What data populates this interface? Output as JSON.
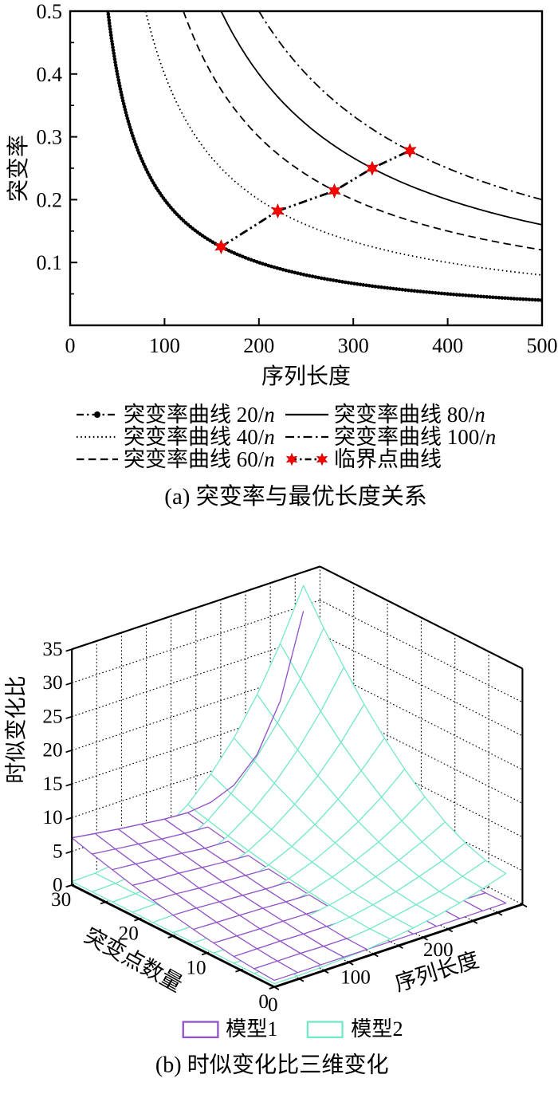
{
  "colors": {
    "black": "#000000",
    "star_fill": "#ff0000",
    "star_edge": "#c40000",
    "model1": "#9254c8",
    "model2": "#74e8c8"
  },
  "chart_data": [
    {
      "type": "line",
      "title": "(a) 突变率与最优长度关系",
      "xlabel": "序列长度",
      "ylabel": "突变率",
      "xlim": [
        0,
        500
      ],
      "ylim": [
        0,
        0.5
      ],
      "x_ticks": [
        0,
        100,
        200,
        300,
        400,
        500
      ],
      "y_ticks": [
        "0.1",
        "0.2",
        "0.3",
        "0.4",
        "0.5"
      ],
      "y_minor_ticks": [
        0.05,
        0.15,
        0.25,
        0.35,
        0.45
      ],
      "grid": false,
      "legend_position": "below",
      "series": [
        {
          "name": "突变率曲线 20/n",
          "label_prefix": "突变率曲线 20/",
          "label_var": "n",
          "k": 20,
          "linestyle": "beaded-dashdot",
          "color": "#000000"
        },
        {
          "name": "突变率曲线 40/n",
          "label_prefix": "突变率曲线 40/",
          "label_var": "n",
          "k": 40,
          "linestyle": "dotted",
          "color": "#000000"
        },
        {
          "name": "突变率曲线 60/n",
          "label_prefix": "突变率曲线 60/",
          "label_var": "n",
          "k": 60,
          "linestyle": "dashed",
          "color": "#000000"
        },
        {
          "name": "突变率曲线 80/n",
          "label_prefix": "突变率曲线 80/",
          "label_var": "n",
          "k": 80,
          "linestyle": "solid",
          "color": "#000000"
        },
        {
          "name": "突变率曲线 100/n",
          "label_prefix": "突变率曲线 100/",
          "label_var": "n",
          "k": 100,
          "linestyle": "dashdot",
          "color": "#000000"
        }
      ],
      "critical_curve": {
        "name": "临界点曲线",
        "marker": "red-hexagram",
        "linestyle": "dashdotdot",
        "color": "#000000",
        "marker_color": "#ff0000",
        "points": [
          [
            160,
            0.125
          ],
          [
            220,
            0.182
          ],
          [
            280,
            0.214
          ],
          [
            320,
            0.25
          ],
          [
            360,
            0.278
          ]
        ]
      }
    },
    {
      "type": "surface",
      "title": "(b) 时似变化比三维变化",
      "xlabel": "序列长度",
      "ylabel": "突变点数量",
      "zlabel": "时似变化比",
      "xlim": [
        0,
        300
      ],
      "ylim": [
        0,
        30
      ],
      "zlim": [
        0,
        35
      ],
      "x_ticks": [
        0,
        100,
        200
      ],
      "y_ticks": [
        30,
        20,
        10,
        0
      ],
      "z_ticks": [
        0,
        5,
        10,
        15,
        20,
        25,
        30,
        35
      ],
      "x_grid_wall": [
        30,
        60,
        90,
        120,
        150,
        180,
        210,
        240,
        270
      ],
      "y_grid_wall": [
        5,
        10,
        15,
        20,
        25
      ],
      "z_grid_wall": [
        5,
        10,
        15,
        20,
        25,
        30
      ],
      "x_mesh": [
        0,
        28,
        56,
        84,
        112,
        140,
        168,
        196,
        224,
        252,
        280
      ],
      "y_mesh": [
        0,
        3,
        6,
        9,
        12,
        15,
        18,
        21,
        24,
        27,
        30
      ],
      "series": [
        {
          "name": "模型1",
          "color": "#9254c8",
          "z": [
            [
              1.0,
              1.0,
              1.0,
              1.0,
              1.0,
              1.0,
              1.0,
              1.0,
              1.0,
              1.0,
              1.0
            ],
            [
              1.2,
              1.2,
              1.2,
              1.1,
              1.1,
              1.1,
              1.1,
              1.1,
              1.1,
              1.1,
              1.0
            ],
            [
              1.5,
              1.5,
              1.5,
              1.4,
              1.4,
              1.3,
              1.3,
              1.2,
              1.2,
              1.2,
              1.2
            ],
            [
              2.0,
              1.9,
              1.8,
              1.8,
              1.7,
              1.6,
              1.5,
              1.4,
              1.4,
              1.4,
              1.4
            ],
            [
              2.5,
              2.4,
              2.3,
              2.2,
              2.0,
              1.9,
              1.8,
              1.7,
              1.7,
              1.8,
              2.0
            ],
            [
              3.1,
              3.0,
              2.8,
              2.6,
              2.4,
              2.3,
              2.2,
              2.1,
              2.2,
              2.5,
              3.1
            ],
            [
              3.8,
              3.6,
              3.3,
              3.1,
              2.9,
              2.7,
              2.6,
              2.6,
              2.9,
              3.6,
              5.1
            ],
            [
              4.5,
              4.2,
              4.0,
              3.7,
              3.4,
              3.2,
              3.1,
              3.3,
              4.0,
              5.4,
              8.2
            ],
            [
              5.3,
              5.0,
              4.6,
              4.3,
              3.9,
              3.8,
              3.8,
              4.2,
              5.4,
              8.1,
              12.9
            ],
            [
              6.1,
              5.7,
              5.3,
              4.9,
              4.6,
              4.4,
              4.5,
              5.3,
              7.5,
              11.9,
              19.7
            ],
            [
              7.0,
              6.5,
              6.0,
              5.6,
              5.2,
              5.0,
              5.4,
              6.8,
              10.2,
              17.0,
              29.2
            ]
          ]
        },
        {
          "name": "模型2",
          "color": "#74e8c8",
          "z": [
            [
              0.5,
              0.5,
              0.6,
              0.8,
              1.0,
              1.4,
              1.9,
              2.5,
              3.3,
              4.3,
              5.4
            ],
            [
              0.5,
              0.5,
              0.6,
              0.8,
              1.0,
              1.4,
              2.0,
              2.7,
              3.5,
              4.6,
              5.8
            ],
            [
              0.5,
              0.5,
              0.6,
              0.8,
              1.2,
              1.6,
              2.3,
              3.1,
              4.2,
              5.4,
              6.9
            ],
            [
              0.5,
              0.5,
              0.6,
              0.9,
              1.3,
              1.9,
              2.7,
              3.8,
              5.1,
              6.7,
              8.5
            ],
            [
              0.5,
              0.5,
              0.7,
              1.0,
              1.5,
              2.3,
              3.4,
              4.7,
              6.3,
              8.3,
              10.7
            ],
            [
              0.5,
              0.5,
              0.7,
              1.1,
              1.8,
              2.8,
              4.1,
              5.8,
              7.8,
              10.3,
              13.3
            ],
            [
              0.5,
              0.6,
              0.8,
              1.3,
              2.1,
              3.3,
              4.9,
              7.0,
              9.6,
              12.7,
              16.4
            ],
            [
              0.5,
              0.6,
              0.9,
              1.5,
              2.5,
              3.9,
              5.9,
              8.5,
              11.6,
              15.4,
              19.9
            ],
            [
              0.5,
              0.6,
              0.9,
              1.6,
              2.9,
              4.6,
              7.0,
              10.1,
              13.9,
              18.5,
              23.9
            ],
            [
              0.5,
              0.6,
              1.0,
              1.9,
              3.3,
              5.4,
              8.2,
              11.9,
              16.4,
              21.8,
              28.2
            ],
            [
              0.5,
              0.6,
              1.1,
              2.1,
              3.8,
              6.2,
              9.6,
              13.8,
              19.1,
              25.5,
              33.0
            ]
          ]
        }
      ]
    }
  ]
}
